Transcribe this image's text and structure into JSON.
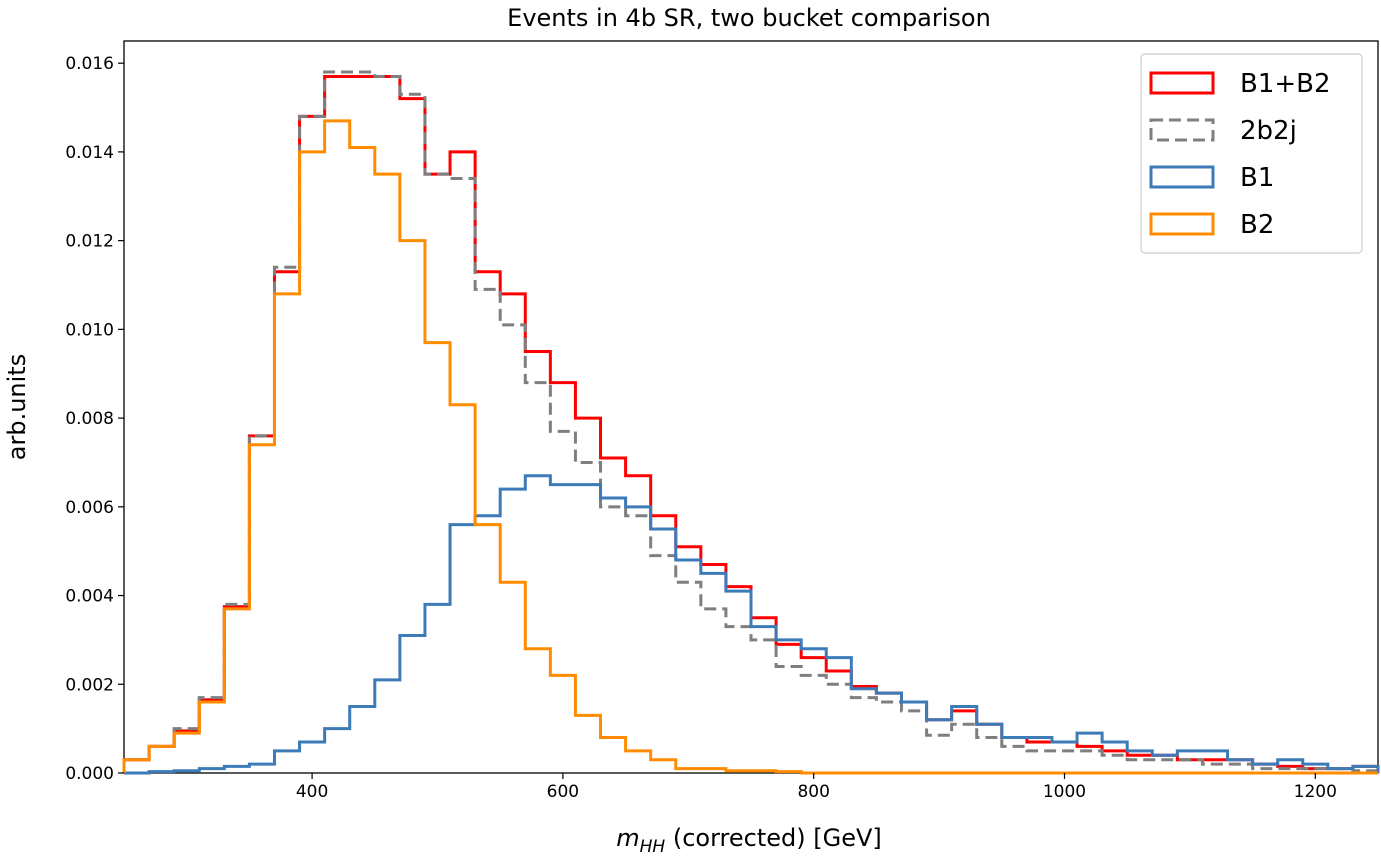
{
  "chart_data": {
    "type": "histogram",
    "title": "Events in 4b SR, two bucket comparison",
    "xlabel_main": "m",
    "xlabel_sub": "HH",
    "xlabel_rest": " (corrected) [GeV]",
    "ylabel": "arb.units",
    "xlim": [
      250,
      1250
    ],
    "ylim": [
      0,
      0.0165
    ],
    "xticks": [
      400,
      600,
      800,
      1000,
      1200
    ],
    "xtick_labels": [
      "400",
      "600",
      "800",
      "1000",
      "1200"
    ],
    "yticks": [
      0,
      0.002,
      0.004,
      0.006,
      0.008,
      0.01,
      0.012,
      0.014,
      0.016
    ],
    "ytick_labels": [
      "0.000",
      "0.002",
      "0.004",
      "0.006",
      "0.008",
      "0.010",
      "0.012",
      "0.014",
      "0.016"
    ],
    "bin_edges": [
      250,
      270,
      290,
      310,
      330,
      350,
      370,
      390,
      410,
      430,
      450,
      470,
      490,
      510,
      530,
      550,
      570,
      590,
      610,
      630,
      650,
      670,
      690,
      710,
      730,
      750,
      770,
      790,
      810,
      830,
      850,
      870,
      890,
      910,
      930,
      950,
      970,
      990,
      1010,
      1030,
      1050,
      1070,
      1090,
      1110,
      1130,
      1150,
      1170,
      1190,
      1210,
      1230,
      1250
    ],
    "legend_position": "upper right",
    "series": [
      {
        "name": "B1+B2",
        "color": "#ff0000",
        "style": "solid",
        "values": [
          0.0003,
          0.0006,
          0.00095,
          0.00165,
          0.00375,
          0.0076,
          0.0113,
          0.0148,
          0.0157,
          0.0157,
          0.0157,
          0.0152,
          0.0135,
          0.014,
          0.0113,
          0.0108,
          0.0095,
          0.0088,
          0.008,
          0.0071,
          0.0067,
          0.0058,
          0.0051,
          0.0047,
          0.0042,
          0.0035,
          0.0029,
          0.0026,
          0.0023,
          0.00195,
          0.0018,
          0.0016,
          0.0012,
          0.0014,
          0.0011,
          0.0008,
          0.0007,
          0.0007,
          0.0006,
          0.0005,
          0.0004,
          0.0004,
          0.0003,
          0.0003,
          0.0003,
          0.0002,
          0.00015,
          0.0001,
          0.0001,
          0.00015
        ]
      },
      {
        "name": "2b2j",
        "color": "#7f7f7f",
        "style": "dashed",
        "values": [
          0.0003,
          0.0006,
          0.001,
          0.0017,
          0.0038,
          0.0076,
          0.0114,
          0.0148,
          0.0158,
          0.0158,
          0.0157,
          0.0153,
          0.0135,
          0.0134,
          0.0109,
          0.0101,
          0.0088,
          0.0077,
          0.007,
          0.006,
          0.0058,
          0.0049,
          0.0043,
          0.0037,
          0.0033,
          0.003,
          0.0024,
          0.0022,
          0.002,
          0.0017,
          0.0016,
          0.0014,
          0.00085,
          0.0011,
          0.0008,
          0.0006,
          0.0005,
          0.0005,
          0.0005,
          0.0004,
          0.0003,
          0.0003,
          0.0003,
          0.0002,
          0.0002,
          0.0001,
          0.0001,
          0.0001,
          0.0001,
          5e-05
        ]
      },
      {
        "name": "B1",
        "color": "#3d7ab8",
        "style": "solid",
        "values": [
          0.0,
          3e-05,
          5e-05,
          0.0001,
          0.00015,
          0.0002,
          0.0005,
          0.0007,
          0.001,
          0.0015,
          0.0021,
          0.0031,
          0.0038,
          0.0056,
          0.0058,
          0.0064,
          0.0067,
          0.0065,
          0.0065,
          0.0062,
          0.006,
          0.0055,
          0.0048,
          0.0045,
          0.0041,
          0.0033,
          0.003,
          0.0028,
          0.0026,
          0.0019,
          0.0018,
          0.0016,
          0.0012,
          0.0015,
          0.0011,
          0.0008,
          0.0008,
          0.0007,
          0.0009,
          0.0007,
          0.0005,
          0.0004,
          0.0005,
          0.0005,
          0.0003,
          0.0002,
          0.0003,
          0.0002,
          0.0001,
          0.00015
        ]
      },
      {
        "name": "B2",
        "color": "#ff8c00",
        "style": "solid",
        "values": [
          0.0003,
          0.0006,
          0.0009,
          0.0016,
          0.0037,
          0.0074,
          0.0108,
          0.014,
          0.0147,
          0.0141,
          0.0135,
          0.012,
          0.0097,
          0.0083,
          0.0056,
          0.0043,
          0.0028,
          0.0022,
          0.0013,
          0.0008,
          0.0005,
          0.0003,
          0.0001,
          0.0001,
          5e-05,
          5e-05,
          3e-05,
          0.0,
          0.0,
          0.0,
          0.0,
          0.0,
          0.0,
          0.0,
          0.0,
          0.0,
          0.0,
          0.0,
          0.0,
          0.0,
          0.0,
          0.0,
          0.0,
          0.0,
          0.0,
          0.0,
          0.0,
          0.0,
          0.0,
          0.0
        ]
      }
    ]
  }
}
